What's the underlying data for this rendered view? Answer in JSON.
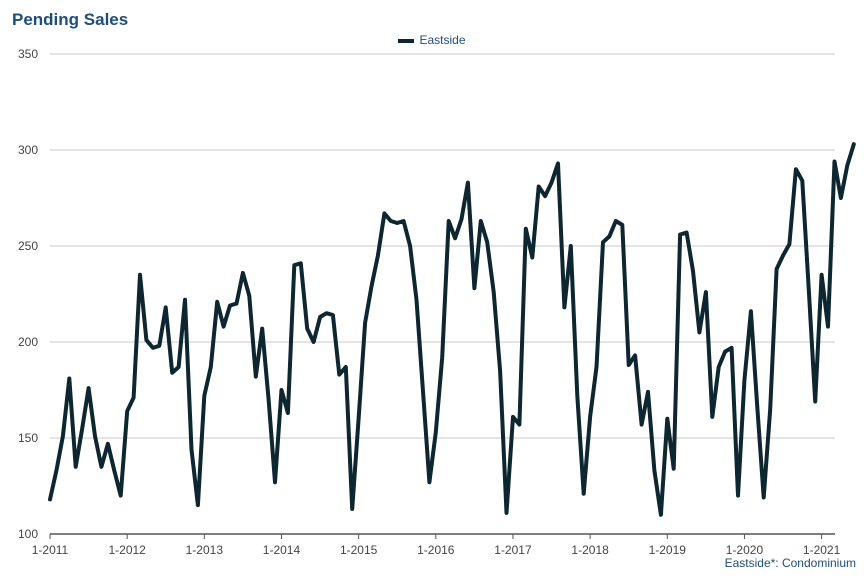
{
  "title": "Pending Sales",
  "footnote": "Eastside*: Condominium",
  "colors": {
    "line": "#0d2630",
    "title": "#1f4e79",
    "grid": "#c8c8c8"
  },
  "chart_data": {
    "type": "line",
    "title": "Pending Sales",
    "xlabel": "",
    "ylabel": "",
    "ylim": [
      100,
      350
    ],
    "yticks": [
      100,
      150,
      200,
      250,
      300,
      350
    ],
    "xtick_labels": [
      "1-2011",
      "1-2012",
      "1-2013",
      "1-2014",
      "1-2015",
      "1-2016",
      "1-2017",
      "1-2018",
      "1-2019",
      "1-2020",
      "1-2021"
    ],
    "grid": true,
    "legend_position": "top-center",
    "x_start": "1-2011",
    "x_unit": "month",
    "series": [
      {
        "name": "Eastside",
        "values": [
          118,
          133,
          151,
          181,
          135,
          155,
          176,
          151,
          135,
          147,
          133,
          120,
          164,
          171,
          235,
          201,
          197,
          198,
          218,
          184,
          187,
          222,
          144,
          115,
          172,
          187,
          221,
          208,
          219,
          220,
          236,
          224,
          182,
          207,
          170,
          127,
          175,
          163,
          240,
          241,
          207,
          200,
          213,
          215,
          214,
          183,
          187,
          113,
          160,
          210,
          229,
          245,
          267,
          263,
          262,
          263,
          250,
          222,
          175,
          127,
          153,
          192,
          263,
          254,
          264,
          283,
          228,
          263,
          252,
          226,
          185,
          111,
          161,
          157,
          259,
          244,
          281,
          276,
          283,
          293,
          218,
          250,
          172,
          121,
          161,
          187,
          252,
          255,
          263,
          261,
          188,
          193,
          157,
          174,
          133,
          110,
          160,
          134,
          256,
          257,
          237,
          205,
          226,
          161,
          187,
          195,
          197,
          120,
          180,
          216,
          166,
          119,
          165,
          238,
          245,
          251,
          290,
          284,
          228,
          169,
          235,
          208,
          294,
          275,
          292,
          303
        ]
      }
    ]
  }
}
